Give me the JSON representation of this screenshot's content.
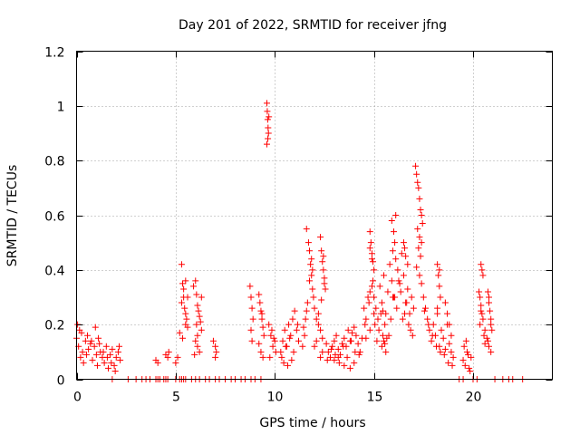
{
  "chart_data": {
    "type": "scatter",
    "title": "Day 201 of 2022, SRMTID for receiver jfng",
    "xlabel": "GPS time / hours",
    "ylabel": "SRMTID / TECUs",
    "xlim": [
      0,
      24
    ],
    "ylim": [
      0,
      1.2
    ],
    "x_ticks": [
      0,
      5,
      10,
      15,
      20
    ],
    "x_tick_labels": [
      "0",
      "5",
      "10",
      "15",
      "20"
    ],
    "y_ticks": [
      0,
      0.2,
      0.4,
      0.6,
      0.8,
      1.0,
      1.2
    ],
    "y_tick_labels": [
      "0",
      "0.2",
      "0.4",
      "0.6",
      "0.8",
      "1",
      "1.2"
    ],
    "grid": "dotted",
    "marker": "plus",
    "colors": {
      "series": "#ff0000",
      "grid": "#a0a0a0",
      "axis": "#000000"
    },
    "series": [
      {
        "name": "SRMTID",
        "x": [
          0.0,
          0.1,
          0.15,
          0.2,
          0.3,
          0.35,
          0.45,
          0.5,
          0.6,
          0.7,
          0.8,
          0.9,
          1.0,
          1.05,
          1.1,
          1.2,
          1.3,
          1.4,
          1.5,
          1.6,
          1.7,
          1.8,
          1.9,
          2.0,
          2.1,
          2.2,
          0.05,
          0.25,
          0.55,
          0.75,
          0.95,
          1.15,
          1.35,
          1.55,
          1.75,
          1.95,
          2.15,
          1.8,
          2.6,
          3.0,
          3.3,
          3.5,
          3.7,
          4.0,
          4.1,
          4.2,
          4.4,
          4.5,
          4.6,
          5.0,
          5.2,
          5.3,
          5.4,
          5.5,
          5.8,
          6.0,
          6.2,
          6.5,
          6.7,
          7.0,
          7.2,
          7.5,
          7.8,
          8.0,
          8.3,
          8.5,
          8.8,
          9.0,
          9.3,
          4.0,
          4.1,
          4.5,
          4.6,
          4.65,
          5.0,
          5.1,
          5.3,
          5.35,
          5.4,
          5.45,
          5.5,
          5.55,
          5.6,
          5.3,
          5.4,
          5.5,
          5.2,
          5.6,
          5.35,
          5.5,
          5.9,
          6.0,
          6.05,
          6.1,
          6.15,
          6.2,
          6.25,
          6.3,
          6.0,
          6.1,
          6.2,
          5.95,
          6.3,
          6.1,
          6.05,
          6.9,
          7.0,
          7.0,
          7.05,
          8.75,
          8.8,
          8.85,
          8.9,
          8.8,
          8.85,
          9.2,
          9.25,
          9.3,
          9.35,
          9.4,
          9.45,
          9.2,
          9.3,
          9.4,
          9.35,
          9.6,
          9.62,
          9.64,
          9.66,
          9.68,
          9.7,
          9.6,
          9.65,
          9.7,
          9.8,
          9.9,
          10.0,
          10.05,
          9.75,
          9.85,
          9.95,
          10.3,
          10.4,
          10.5,
          10.6,
          10.7,
          10.8,
          10.9,
          11.0,
          11.1,
          11.2,
          10.35,
          10.55,
          10.75,
          10.95,
          11.15,
          10.45,
          10.65,
          10.85,
          11.6,
          11.7,
          11.75,
          11.8,
          11.85,
          11.9,
          11.95,
          11.65,
          11.75,
          11.85,
          11.6,
          11.9,
          11.4,
          11.5,
          11.55,
          11.45,
          12.0,
          12.1,
          12.2,
          12.3,
          12.4,
          12.0,
          12.2,
          12.4,
          12.1,
          12.3,
          12.3,
          12.35,
          12.4,
          12.45,
          12.5,
          12.55,
          12.35,
          12.45,
          12.5,
          12.6,
          12.7,
          12.8,
          12.9,
          13.0,
          13.1,
          13.2,
          13.3,
          13.4,
          13.5,
          13.6,
          13.7,
          13.8,
          13.9,
          14.0,
          14.1,
          14.2,
          14.3,
          14.4,
          12.65,
          12.85,
          13.05,
          13.25,
          13.45,
          13.65,
          13.85,
          14.05,
          14.25,
          13.0,
          13.5,
          14.0,
          13.2,
          13.8,
          14.5,
          14.6,
          14.7,
          14.8,
          14.9,
          15.0,
          14.55,
          14.75,
          14.95,
          14.6,
          14.8,
          14.8,
          14.85,
          14.9,
          14.95,
          15.0,
          14.8,
          14.9,
          15.0,
          15.1,
          15.2,
          15.3,
          15.4,
          15.5,
          15.6,
          15.7,
          15.8,
          15.9,
          16.0,
          16.1,
          16.2,
          16.3,
          16.4,
          16.5,
          16.6,
          16.7,
          16.8,
          16.9,
          17.0,
          15.05,
          15.25,
          15.45,
          15.65,
          15.85,
          16.05,
          16.25,
          16.45,
          16.65,
          16.85,
          15.15,
          15.35,
          15.55,
          15.75,
          15.95,
          16.15,
          16.35,
          16.55,
          16.75,
          16.95,
          15.4,
          15.5,
          15.6,
          15.45,
          15.55,
          15.9,
          16.0,
          16.1,
          16.05,
          15.95,
          16.5,
          16.6,
          16.7,
          16.55,
          17.1,
          17.15,
          17.2,
          17.25,
          17.3,
          17.35,
          17.4,
          17.45,
          17.2,
          17.3,
          17.4,
          17.25,
          17.35,
          17.15,
          17.3,
          17.4,
          17.5,
          17.6,
          17.7,
          17.8,
          17.9,
          18.0,
          18.1,
          18.2,
          18.3,
          18.4,
          18.5,
          18.6,
          18.7,
          18.8,
          18.9,
          19.0,
          17.55,
          17.75,
          17.95,
          18.15,
          18.35,
          18.55,
          18.75,
          18.95,
          18.2,
          18.25,
          18.3,
          18.35,
          18.2,
          18.3,
          18.6,
          18.7,
          18.8,
          18.9,
          19.5,
          19.6,
          19.7,
          19.8,
          19.9,
          19.55,
          19.75,
          19.85,
          19.65,
          20.3,
          20.35,
          20.4,
          20.45,
          20.5,
          20.6,
          20.7,
          20.8,
          20.9,
          20.35,
          20.55,
          20.75,
          20.4,
          20.6,
          20.4,
          20.45,
          20.5,
          20.75,
          20.8,
          20.85,
          20.9,
          20.95,
          20.8,
          20.9,
          19.3,
          19.5,
          20.0,
          20.2,
          21.1,
          21.5,
          21.8,
          22.0,
          22.5
        ],
        "y": [
          0.15,
          0.12,
          0.18,
          0.08,
          0.1,
          0.06,
          0.14,
          0.09,
          0.11,
          0.13,
          0.07,
          0.12,
          0.09,
          0.05,
          0.15,
          0.1,
          0.08,
          0.06,
          0.12,
          0.04,
          0.09,
          0.11,
          0.05,
          0.08,
          0.1,
          0.07,
          0.2,
          0.17,
          0.16,
          0.14,
          0.19,
          0.13,
          0.1,
          0.08,
          0.06,
          0.03,
          0.12,
          0.0,
          0.0,
          0.0,
          0.0,
          0.0,
          0.0,
          0.0,
          0.0,
          0.0,
          0.0,
          0.0,
          0.0,
          0.0,
          0.0,
          0.0,
          0.0,
          0.0,
          0.0,
          0.0,
          0.0,
          0.0,
          0.0,
          0.0,
          0.0,
          0.0,
          0.0,
          0.0,
          0.0,
          0.0,
          0.0,
          0.0,
          0.0,
          0.07,
          0.06,
          0.09,
          0.08,
          0.1,
          0.06,
          0.08,
          0.42,
          0.35,
          0.3,
          0.26,
          0.24,
          0.22,
          0.19,
          0.28,
          0.33,
          0.36,
          0.17,
          0.3,
          0.15,
          0.2,
          0.34,
          0.36,
          0.31,
          0.27,
          0.25,
          0.23,
          0.21,
          0.18,
          0.14,
          0.12,
          0.1,
          0.09,
          0.3,
          0.16,
          0.2,
          0.14,
          0.12,
          0.08,
          0.1,
          0.34,
          0.3,
          0.26,
          0.22,
          0.18,
          0.14,
          0.31,
          0.28,
          0.25,
          0.22,
          0.19,
          0.16,
          0.13,
          0.1,
          0.08,
          0.24,
          1.01,
          0.98,
          0.95,
          0.92,
          0.9,
          0.96,
          0.86,
          0.88,
          0.2,
          0.16,
          0.12,
          0.14,
          0.1,
          0.08,
          0.18,
          0.15,
          0.1,
          0.14,
          0.18,
          0.12,
          0.2,
          0.16,
          0.22,
          0.25,
          0.18,
          0.14,
          0.08,
          0.12,
          0.15,
          0.1,
          0.2,
          0.06,
          0.05,
          0.07,
          0.55,
          0.5,
          0.47,
          0.42,
          0.38,
          0.33,
          0.3,
          0.28,
          0.36,
          0.44,
          0.25,
          0.4,
          0.12,
          0.16,
          0.22,
          0.19,
          0.26,
          0.22,
          0.2,
          0.18,
          0.15,
          0.12,
          0.24,
          0.1,
          0.14,
          0.08,
          0.52,
          0.47,
          0.43,
          0.4,
          0.37,
          0.33,
          0.29,
          0.45,
          0.35,
          0.13,
          0.1,
          0.08,
          0.12,
          0.14,
          0.16,
          0.11,
          0.09,
          0.13,
          0.15,
          0.12,
          0.18,
          0.14,
          0.17,
          0.19,
          0.16,
          0.13,
          0.1,
          0.15,
          0.07,
          0.11,
          0.09,
          0.06,
          0.12,
          0.08,
          0.14,
          0.1,
          0.09,
          0.07,
          0.05,
          0.06,
          0.08,
          0.04,
          0.26,
          0.22,
          0.3,
          0.18,
          0.34,
          0.24,
          0.2,
          0.28,
          0.36,
          0.15,
          0.32,
          0.54,
          0.5,
          0.46,
          0.43,
          0.4,
          0.48,
          0.44,
          0.3,
          0.26,
          0.22,
          0.34,
          0.28,
          0.38,
          0.24,
          0.32,
          0.42,
          0.36,
          0.3,
          0.44,
          0.4,
          0.35,
          0.46,
          0.38,
          0.28,
          0.33,
          0.24,
          0.3,
          0.26,
          0.2,
          0.18,
          0.25,
          0.15,
          0.22,
          0.3,
          0.36,
          0.22,
          0.28,
          0.18,
          0.14,
          0.24,
          0.2,
          0.16,
          0.3,
          0.26,
          0.32,
          0.24,
          0.2,
          0.16,
          0.12,
          0.14,
          0.1,
          0.16,
          0.13,
          0.58,
          0.54,
          0.6,
          0.5,
          0.47,
          0.5,
          0.45,
          0.42,
          0.48,
          0.78,
          0.75,
          0.72,
          0.7,
          0.66,
          0.62,
          0.6,
          0.57,
          0.55,
          0.52,
          0.5,
          0.48,
          0.45,
          0.41,
          0.38,
          0.35,
          0.3,
          0.26,
          0.22,
          0.18,
          0.14,
          0.2,
          0.16,
          0.24,
          0.12,
          0.18,
          0.15,
          0.11,
          0.2,
          0.13,
          0.1,
          0.08,
          0.25,
          0.2,
          0.16,
          0.12,
          0.1,
          0.09,
          0.06,
          0.05,
          0.42,
          0.38,
          0.34,
          0.3,
          0.26,
          0.4,
          0.28,
          0.24,
          0.2,
          0.16,
          0.07,
          0.05,
          0.1,
          0.04,
          0.08,
          0.12,
          0.09,
          0.03,
          0.14,
          0.32,
          0.3,
          0.27,
          0.24,
          0.22,
          0.18,
          0.15,
          0.12,
          0.1,
          0.2,
          0.16,
          0.14,
          0.25,
          0.13,
          0.42,
          0.4,
          0.38,
          0.32,
          0.28,
          0.25,
          0.22,
          0.18,
          0.3,
          0.2,
          0.0,
          0.0,
          0.0,
          0.0,
          0.0,
          0.0,
          0.0,
          0.0,
          0.0
        ]
      }
    ]
  }
}
